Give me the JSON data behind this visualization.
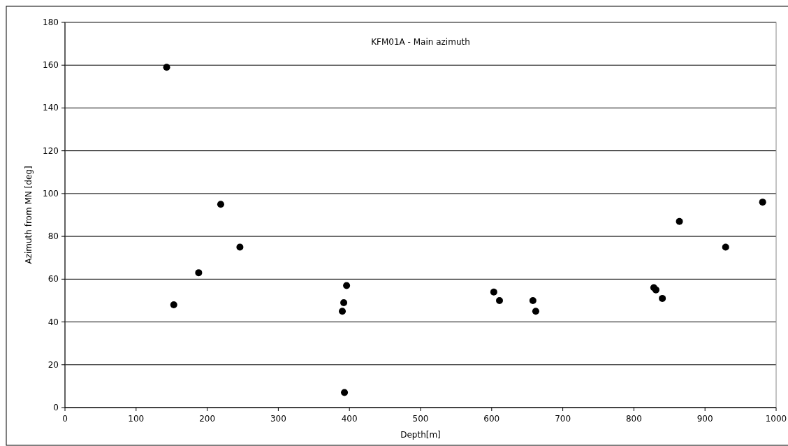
{
  "chart_data": {
    "type": "scatter",
    "title": "KFM01A - Main azimuth",
    "xlabel": "Depth[m]",
    "ylabel": "Azimuth from MN [deg]",
    "x": [
      143,
      153,
      188,
      219,
      246,
      390,
      392,
      393,
      396,
      603,
      611,
      658,
      662,
      828,
      831,
      840,
      864,
      929,
      981
    ],
    "series": [
      {
        "color": "#000000",
        "values": [
          159,
          48,
          63,
          95,
          75,
          45,
          49,
          7,
          57,
          54,
          50,
          50,
          45,
          56,
          55,
          51,
          87,
          75,
          96
        ]
      }
    ],
    "xlim": [
      0,
      1000
    ],
    "xticks": [
      0,
      100,
      200,
      300,
      400,
      500,
      600,
      700,
      800,
      900,
      1000
    ],
    "ylim": [
      0,
      180
    ],
    "yticks": [
      0,
      20,
      40,
      60,
      80,
      100,
      120,
      140,
      160,
      180
    ],
    "grid": "y",
    "marker": "circle"
  }
}
